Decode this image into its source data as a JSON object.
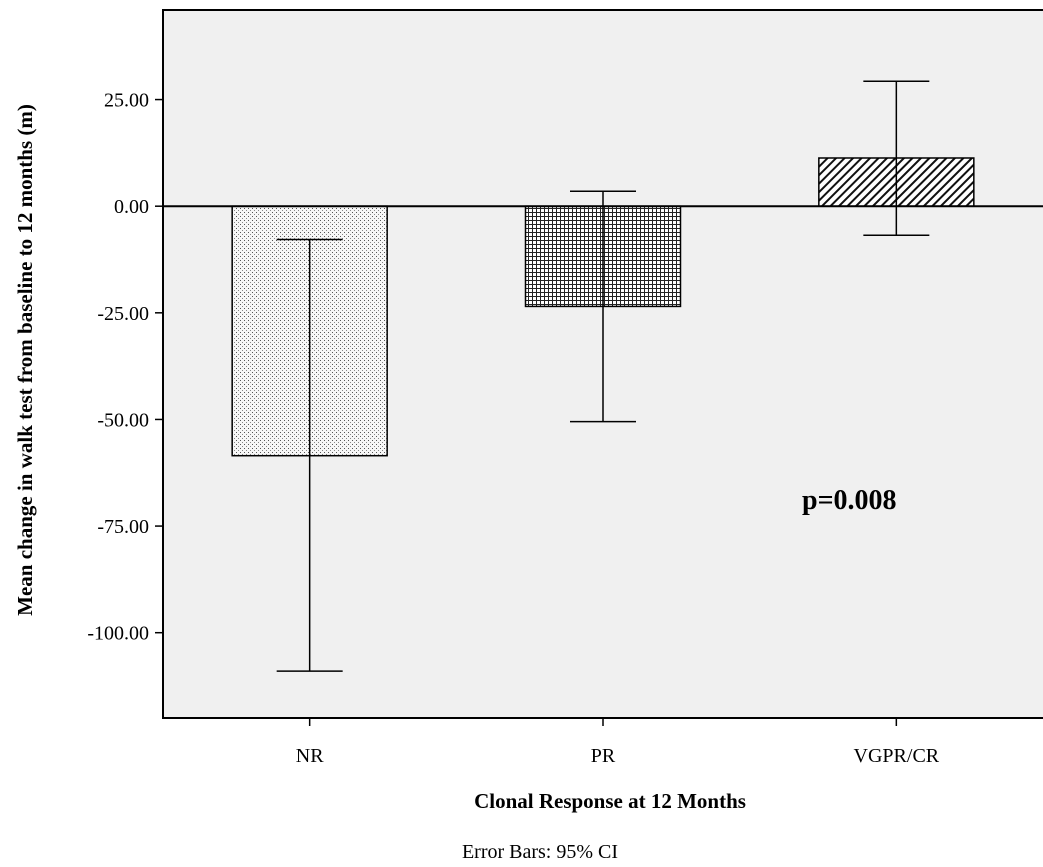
{
  "chart_data": {
    "type": "bar",
    "xlabel": "Clonal Response at 12 Months",
    "ylabel": "Mean change in walk test from baseline to 12 months (m)",
    "categories": [
      "NR",
      "PR",
      "VGPR/CR"
    ],
    "values": [
      -58.5,
      -23.5,
      11.3
    ],
    "ci_lower": [
      -109.0,
      -50.5,
      -6.8
    ],
    "ci_upper": [
      -7.8,
      3.5,
      29.3
    ],
    "ylim": [
      -120,
      46
    ],
    "yticks": [
      25,
      0,
      -25,
      -50,
      -75,
      -100
    ],
    "ytick_labels": [
      "25.00",
      "0.00",
      "-25.00",
      "-50.00",
      "-75.00",
      "-100.00"
    ],
    "bar_patterns": [
      "dots",
      "grid",
      "diagonal"
    ],
    "annotation": "p=0.008",
    "footnote": "Error Bars: 95% CI",
    "grid": false,
    "colors": {
      "plot_background": "#f0f0f0",
      "bar_outline": "#000000",
      "frame": "#000000"
    }
  }
}
